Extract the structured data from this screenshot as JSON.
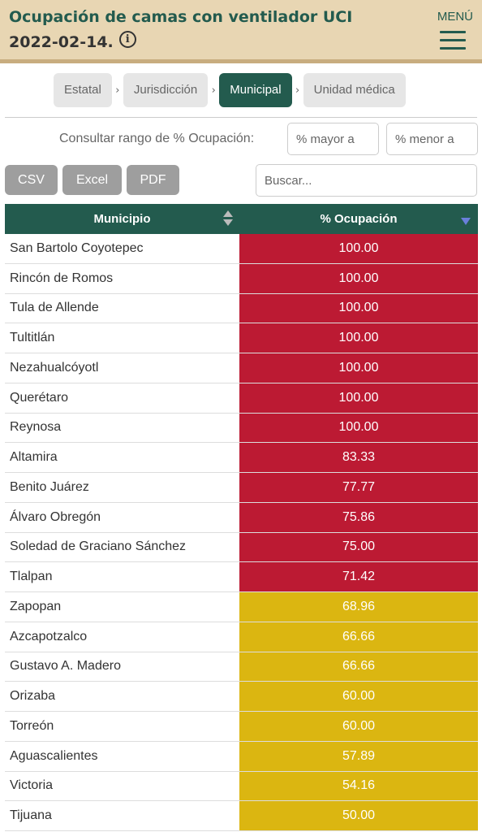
{
  "header": {
    "title": "Ocupación de camas con ventilador UCI",
    "date": "2022-02-14.",
    "info_icon": "info-icon",
    "menu_label": "MENÚ",
    "menu_icon": "hamburger-icon"
  },
  "breadcrumbs": {
    "items": [
      "Estatal",
      "Jurisdicción",
      "Municipal",
      "Unidad médica"
    ],
    "active": "Municipal",
    "separator": "›"
  },
  "filters": {
    "range_label": "Consultar rango de % Ocupación:",
    "min_placeholder": "% mayor a",
    "max_placeholder": "% menor a",
    "search_placeholder": "Buscar..."
  },
  "export_buttons": [
    "CSV",
    "Excel",
    "PDF"
  ],
  "table": {
    "columns": [
      "Municipio",
      "% Ocupación"
    ],
    "sorted_column": "% Ocupación",
    "sort_direction": "desc",
    "rows": [
      {
        "municipio": "San Bartolo Coyotepec",
        "ocupacion": "100.00",
        "status": "red"
      },
      {
        "municipio": "Rincón de Romos",
        "ocupacion": "100.00",
        "status": "red"
      },
      {
        "municipio": "Tula de Allende",
        "ocupacion": "100.00",
        "status": "red"
      },
      {
        "municipio": "Tultitlán",
        "ocupacion": "100.00",
        "status": "red"
      },
      {
        "municipio": "Nezahualcóyotl",
        "ocupacion": "100.00",
        "status": "red"
      },
      {
        "municipio": "Querétaro",
        "ocupacion": "100.00",
        "status": "red"
      },
      {
        "municipio": "Reynosa",
        "ocupacion": "100.00",
        "status": "red"
      },
      {
        "municipio": "Altamira",
        "ocupacion": "83.33",
        "status": "red"
      },
      {
        "municipio": "Benito Juárez",
        "ocupacion": "77.77",
        "status": "red"
      },
      {
        "municipio": "Álvaro Obregón",
        "ocupacion": "75.86",
        "status": "red"
      },
      {
        "municipio": "Soledad de Graciano Sánchez",
        "ocupacion": "75.00",
        "status": "red"
      },
      {
        "municipio": "Tlalpan",
        "ocupacion": "71.42",
        "status": "red"
      },
      {
        "municipio": "Zapopan",
        "ocupacion": "68.96",
        "status": "yellow"
      },
      {
        "municipio": "Azcapotzalco",
        "ocupacion": "66.66",
        "status": "yellow"
      },
      {
        "municipio": "Gustavo A. Madero",
        "ocupacion": "66.66",
        "status": "yellow"
      },
      {
        "municipio": "Orizaba",
        "ocupacion": "60.00",
        "status": "yellow"
      },
      {
        "municipio": "Torreón",
        "ocupacion": "60.00",
        "status": "yellow"
      },
      {
        "municipio": "Aguascalientes",
        "ocupacion": "57.89",
        "status": "yellow"
      },
      {
        "municipio": "Victoria",
        "ocupacion": "54.16",
        "status": "yellow"
      },
      {
        "municipio": "Tijuana",
        "ocupacion": "50.00",
        "status": "yellow"
      }
    ]
  },
  "colors": {
    "primary": "#235b4e",
    "header_bg": "#e8d6b3",
    "header_border": "#c8ad7f",
    "red": "#bc1a33",
    "yellow": "#dbb611",
    "button_gray": "#9e9e9e",
    "crumb_bg": "#e6e6e6"
  }
}
